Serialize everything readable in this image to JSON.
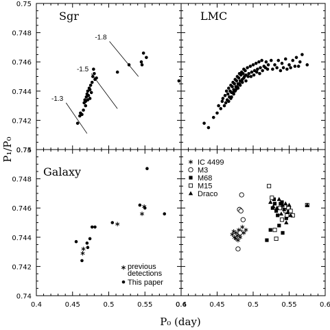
{
  "chart_data": {
    "type": "scatter",
    "xlabel": "P₀ (day)",
    "ylabel": "P₁/P₀",
    "xlim": [
      0.4,
      0.6
    ],
    "ylim": [
      0.74,
      0.75
    ],
    "xticks": [
      "0.4",
      "0.45",
      "0.5",
      "0.55",
      "0.6"
    ],
    "yticks": [
      "0.74",
      "0.742",
      "0.744",
      "0.746",
      "0.748",
      "0.75"
    ],
    "panels": [
      {
        "id": "sgr",
        "title": "Sgr",
        "metallicity_lines": [
          {
            "label": "-1.8",
            "x": [
              0.501,
              0.541
            ],
            "y": [
              0.7474,
              0.745
            ]
          },
          {
            "label": "-1.5",
            "x": [
              0.476,
              0.512
            ],
            "y": [
              0.7452,
              0.7428
            ]
          },
          {
            "label": "-1.3",
            "x": [
              0.441,
              0.47
            ],
            "y": [
              0.7432,
              0.7411
            ]
          }
        ],
        "series": [
          {
            "name": "",
            "marker": "dot",
            "points": [
              [
                0.457,
                0.7418
              ],
              [
                0.46,
                0.7423
              ],
              [
                0.461,
                0.7425
              ],
              [
                0.463,
                0.7424
              ],
              [
                0.465,
                0.7427
              ],
              [
                0.466,
                0.7432
              ],
              [
                0.467,
                0.7434
              ],
              [
                0.468,
                0.7433
              ],
              [
                0.469,
                0.7436
              ],
              [
                0.47,
                0.7438
              ],
              [
                0.471,
                0.744
              ],
              [
                0.472,
                0.7437
              ],
              [
                0.473,
                0.7442
              ],
              [
                0.474,
                0.7441
              ],
              [
                0.475,
                0.7444
              ],
              [
                0.476,
                0.7439
              ],
              [
                0.477,
                0.7446
              ],
              [
                0.478,
                0.745
              ],
              [
                0.479,
                0.7455
              ],
              [
                0.48,
                0.7452
              ],
              [
                0.481,
                0.7448
              ],
              [
                0.483,
                0.7449
              ],
              [
                0.468,
                0.743
              ],
              [
                0.471,
                0.7434
              ],
              [
                0.474,
                0.7435
              ],
              [
                0.512,
                0.7453
              ],
              [
                0.528,
                0.7458
              ],
              [
                0.545,
                0.746
              ],
              [
                0.548,
                0.7466
              ],
              [
                0.552,
                0.7463
              ],
              [
                0.546,
                0.7458
              ],
              [
                0.597,
                0.7447
              ]
            ]
          }
        ]
      },
      {
        "id": "lmc",
        "title": "LMC",
        "series": [
          {
            "name": "",
            "marker": "dot",
            "points": [
              [
                0.432,
                0.7418
              ],
              [
                0.438,
                0.7415
              ],
              [
                0.445,
                0.7422
              ],
              [
                0.45,
                0.7425
              ],
              [
                0.452,
                0.743
              ],
              [
                0.455,
                0.7428
              ],
              [
                0.457,
                0.7433
              ],
              [
                0.458,
                0.7435
              ],
              [
                0.46,
                0.743
              ],
              [
                0.461,
                0.7437
              ],
              [
                0.462,
                0.7432
              ],
              [
                0.463,
                0.744
              ],
              [
                0.464,
                0.7434
              ],
              [
                0.465,
                0.7438
              ],
              [
                0.466,
                0.7442
              ],
              [
                0.467,
                0.7436
              ],
              [
                0.468,
                0.744
              ],
              [
                0.469,
                0.7444
              ],
              [
                0.47,
                0.7439
              ],
              [
                0.471,
                0.7443
              ],
              [
                0.472,
                0.7446
              ],
              [
                0.473,
                0.7441
              ],
              [
                0.474,
                0.7445
              ],
              [
                0.475,
                0.7448
              ],
              [
                0.476,
                0.7443
              ],
              [
                0.477,
                0.7447
              ],
              [
                0.478,
                0.745
              ],
              [
                0.479,
                0.7445
              ],
              [
                0.48,
                0.7449
              ],
              [
                0.481,
                0.7452
              ],
              [
                0.482,
                0.7447
              ],
              [
                0.483,
                0.7451
              ],
              [
                0.484,
                0.7453
              ],
              [
                0.485,
                0.7448
              ],
              [
                0.486,
                0.7452
              ],
              [
                0.487,
                0.7455
              ],
              [
                0.488,
                0.745
              ],
              [
                0.489,
                0.7454
              ],
              [
                0.49,
                0.7451
              ],
              [
                0.492,
                0.7456
              ],
              [
                0.494,
                0.7452
              ],
              [
                0.496,
                0.7457
              ],
              [
                0.498,
                0.7453
              ],
              [
                0.5,
                0.7458
              ],
              [
                0.502,
                0.7454
              ],
              [
                0.504,
                0.7459
              ],
              [
                0.506,
                0.7455
              ],
              [
                0.508,
                0.746
              ],
              [
                0.51,
                0.7456
              ],
              [
                0.512,
                0.7461
              ],
              [
                0.515,
                0.7457
              ],
              [
                0.518,
                0.746
              ],
              [
                0.52,
                0.7455
              ],
              [
                0.525,
                0.7461
              ],
              [
                0.53,
                0.7458
              ],
              [
                0.535,
                0.7461
              ],
              [
                0.54,
                0.7459
              ],
              [
                0.545,
                0.7462
              ],
              [
                0.55,
                0.7458
              ],
              [
                0.555,
                0.7461
              ],
              [
                0.56,
                0.7463
              ],
              [
                0.565,
                0.746
              ],
              [
                0.568,
                0.7465
              ],
              [
                0.575,
                0.7458
              ],
              [
                0.47,
                0.7436
              ],
              [
                0.473,
                0.7438
              ],
              [
                0.476,
                0.7441
              ],
              [
                0.479,
                0.7442
              ],
              [
                0.482,
                0.7444
              ],
              [
                0.485,
                0.7446
              ],
              [
                0.466,
                0.7433
              ],
              [
                0.469,
                0.7435
              ],
              [
                0.472,
                0.7439
              ],
              [
                0.475,
                0.744
              ],
              [
                0.478,
                0.7443
              ],
              [
                0.481,
                0.7445
              ],
              [
                0.484,
                0.7447
              ],
              [
                0.487,
                0.7449
              ],
              [
                0.49,
                0.7447
              ],
              [
                0.493,
                0.745
              ],
              [
                0.497,
                0.745
              ],
              [
                0.501,
                0.7451
              ],
              [
                0.505,
                0.7453
              ],
              [
                0.509,
                0.7452
              ],
              [
                0.513,
                0.7454
              ],
              [
                0.517,
                0.7456
              ],
              [
                0.521,
                0.7458
              ],
              [
                0.527,
                0.7455
              ],
              [
                0.533,
                0.7456
              ],
              [
                0.538,
                0.7454
              ],
              [
                0.542,
                0.7456
              ],
              [
                0.547,
                0.7455
              ],
              [
                0.552,
                0.7456
              ],
              [
                0.558,
                0.7457
              ],
              [
                0.563,
                0.7457
              ]
            ]
          }
        ]
      },
      {
        "id": "galaxy",
        "title": "Galaxy",
        "legend_position": "bottom-right",
        "series": [
          {
            "name": "previous detections",
            "marker": "star",
            "points": [
              [
                0.464,
                0.7429
              ],
              [
                0.465,
                0.7432
              ],
              [
                0.512,
                0.7449
              ],
              [
                0.546,
                0.7456
              ],
              [
                0.549,
                0.7461
              ]
            ]
          },
          {
            "name": "This paper",
            "marker": "dot",
            "points": [
              [
                0.455,
                0.7437
              ],
              [
                0.463,
                0.7424
              ],
              [
                0.47,
                0.7436
              ],
              [
                0.471,
                0.7433
              ],
              [
                0.474,
                0.7439
              ],
              [
                0.477,
                0.7447
              ],
              [
                0.481,
                0.7447
              ],
              [
                0.505,
                0.745
              ],
              [
                0.543,
                0.7462
              ],
              [
                0.55,
                0.746
              ],
              [
                0.553,
                0.7487
              ],
              [
                0.577,
                0.7456
              ]
            ]
          }
        ]
      },
      {
        "id": "clusters",
        "title": "",
        "legend_position": "top-left",
        "series": [
          {
            "name": "IC 4499",
            "marker": "star",
            "points": [
              [
                0.471,
                0.7442
              ],
              [
                0.473,
                0.7444
              ],
              [
                0.474,
                0.744
              ],
              [
                0.476,
                0.7443
              ],
              [
                0.478,
                0.7441
              ],
              [
                0.48,
                0.7445
              ],
              [
                0.481,
                0.7442
              ],
              [
                0.483,
                0.7444
              ],
              [
                0.485,
                0.7447
              ],
              [
                0.487,
                0.7443
              ],
              [
                0.49,
                0.7445
              ],
              [
                0.476,
                0.7439
              ],
              [
                0.479,
                0.7438
              ],
              [
                0.482,
                0.744
              ]
            ]
          },
          {
            "name": "M3",
            "marker": "circle-open",
            "points": [
              [
                0.479,
                0.7432
              ],
              [
                0.481,
                0.7459
              ],
              [
                0.483,
                0.7458
              ],
              [
                0.484,
                0.7469
              ],
              [
                0.486,
                0.7452
              ],
              [
                0.482,
                0.7443
              ]
            ]
          },
          {
            "name": "M68",
            "marker": "square-filled",
            "points": [
              [
                0.519,
                0.7438
              ],
              [
                0.524,
                0.7445
              ],
              [
                0.527,
                0.746
              ],
              [
                0.53,
                0.7463
              ],
              [
                0.532,
                0.7458
              ],
              [
                0.534,
                0.7455
              ],
              [
                0.538,
                0.7463
              ],
              [
                0.54,
                0.7464
              ],
              [
                0.543,
                0.746
              ],
              [
                0.546,
                0.7453
              ],
              [
                0.548,
                0.7458
              ],
              [
                0.55,
                0.746
              ],
              [
                0.536,
                0.7448
              ],
              [
                0.541,
                0.7443
              ],
              [
                0.529,
                0.7466
              ]
            ]
          },
          {
            "name": "M15",
            "marker": "square-open",
            "points": [
              [
                0.522,
                0.7475
              ],
              [
                0.526,
                0.7467
              ],
              [
                0.53,
                0.7445
              ],
              [
                0.532,
                0.7439
              ],
              [
                0.537,
                0.746
              ],
              [
                0.54,
                0.7452
              ],
              [
                0.544,
                0.7461
              ],
              [
                0.545,
                0.7458
              ],
              [
                0.547,
                0.7455
              ],
              [
                0.549,
                0.746
              ],
              [
                0.552,
                0.7458
              ],
              [
                0.555,
                0.7455
              ],
              [
                0.575,
                0.7462
              ]
            ]
          },
          {
            "name": "Draco",
            "marker": "triangle",
            "points": [
              [
                0.524,
                0.7464
              ],
              [
                0.528,
                0.7461
              ],
              [
                0.533,
                0.746
              ],
              [
                0.536,
                0.7466
              ],
              [
                0.539,
                0.7456
              ],
              [
                0.541,
                0.7462
              ],
              [
                0.543,
                0.7459
              ],
              [
                0.545,
                0.7463
              ],
              [
                0.546,
                0.745
              ],
              [
                0.548,
                0.7457
              ],
              [
                0.55,
                0.7462
              ],
              [
                0.552,
                0.7455
              ],
              [
                0.575,
                0.7462
              ]
            ]
          }
        ]
      }
    ]
  }
}
